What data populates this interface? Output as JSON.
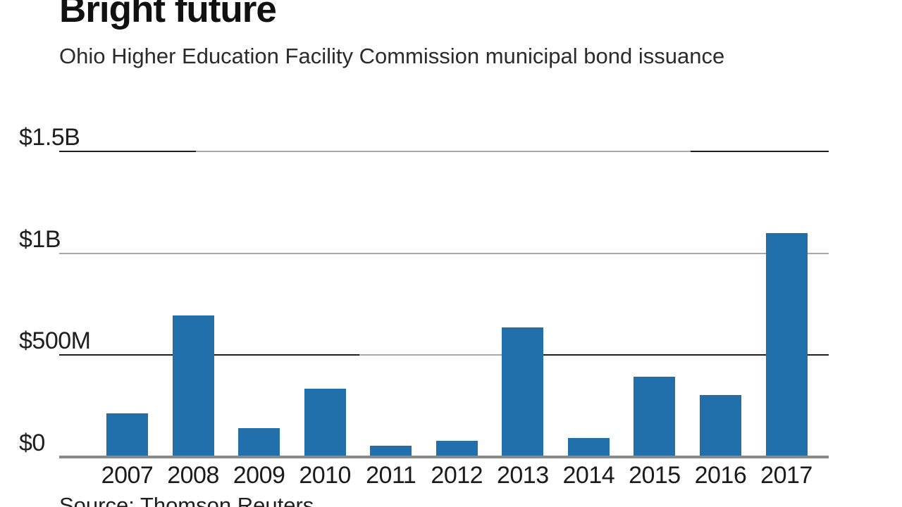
{
  "header": {
    "title": "Bright future",
    "subtitle": "Ohio Higher Education Facility Commission municipal bond issuance"
  },
  "footer": {
    "source": "Source: Thomson Reuters"
  },
  "chart_data": {
    "type": "bar",
    "title": "Bright future",
    "subtitle": "Ohio Higher Education Facility Commission municipal bond issuance",
    "categories": [
      "2007",
      "2008",
      "2009",
      "2010",
      "2011",
      "2012",
      "2013",
      "2014",
      "2015",
      "2016",
      "2017"
    ],
    "values_usd_millions": [
      215,
      695,
      140,
      335,
      55,
      80,
      635,
      95,
      395,
      305,
      1100
    ],
    "y_ticks": [
      {
        "label": "$0",
        "millions": 0
      },
      {
        "label": "$500M",
        "millions": 500
      },
      {
        "label": "$1B",
        "millions": 1000
      },
      {
        "label": "$1.5B",
        "millions": 1500
      }
    ],
    "ylim_millions": [
      0,
      1500
    ],
    "xlabel": "",
    "ylabel": "",
    "grid": "horizontal",
    "legend": "none",
    "bar_color": "#2170ac",
    "source": "Source: Thomson Reuters"
  }
}
